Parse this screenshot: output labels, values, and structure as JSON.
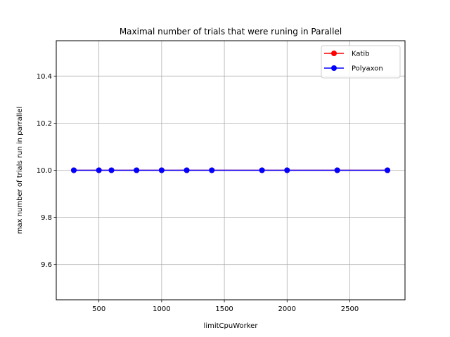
{
  "chart_data": {
    "type": "line",
    "title": "Maximal number of trials that were  runing in Parallel",
    "xlabel": "limitCpuWorker",
    "ylabel": "max number of trials run in parrallel",
    "xlim": [
      160,
      2940
    ],
    "ylim": [
      9.45,
      10.55
    ],
    "xticks": [
      500,
      1000,
      1500,
      2000,
      2500
    ],
    "yticks": [
      9.6,
      9.8,
      10.0,
      10.2,
      10.4
    ],
    "ytick_labels": [
      "9.6",
      "9.8",
      "10.0",
      "10.2",
      "10.4"
    ],
    "grid": true,
    "legend_position": "top-right",
    "x": [
      300,
      500,
      600,
      800,
      1000,
      1200,
      1400,
      1800,
      2000,
      2400,
      2800
    ],
    "series": [
      {
        "name": "Katib",
        "color": "#ff0000",
        "values": [
          10,
          10,
          10,
          10,
          10,
          10,
          10,
          10,
          10,
          10,
          10
        ]
      },
      {
        "name": "Polyaxon",
        "color": "#0000ff",
        "values": [
          10,
          10,
          10,
          10,
          10,
          10,
          10,
          10,
          10,
          10,
          10
        ]
      }
    ]
  }
}
